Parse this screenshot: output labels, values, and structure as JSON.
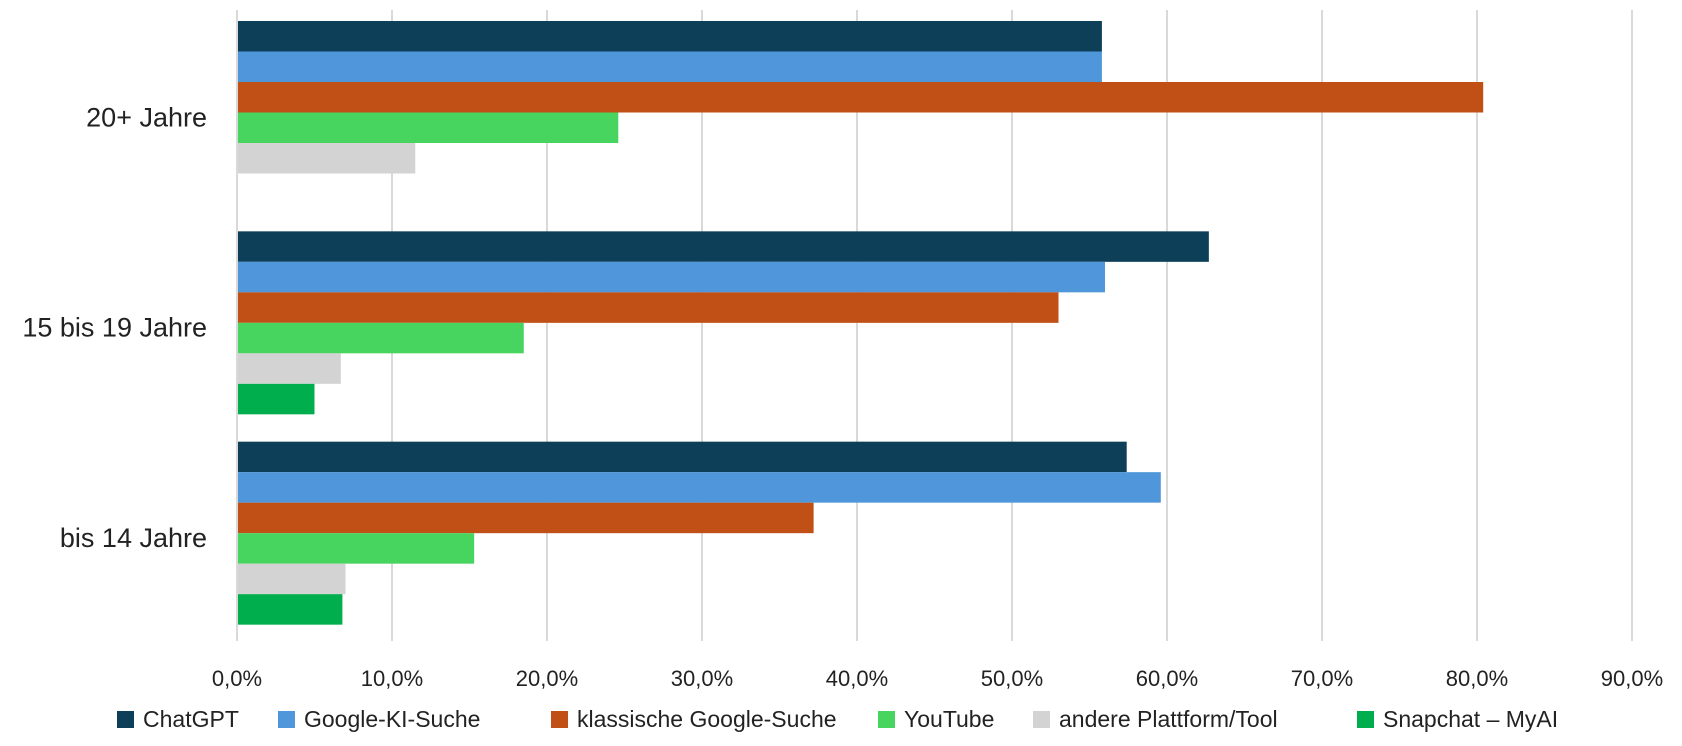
{
  "chart_data": {
    "type": "bar",
    "orientation": "horizontal",
    "categories": [
      "20+ Jahre",
      "15 bis 19 Jahre",
      "bis 14 Jahre"
    ],
    "series": [
      {
        "name": "ChatGPT",
        "color": "#0D4058",
        "values": [
          55.8,
          62.7,
          57.4
        ]
      },
      {
        "name": "Google-KI-Suche",
        "color": "#4F97DA",
        "values": [
          55.8,
          56.0,
          59.6
        ]
      },
      {
        "name": "klassische Google-Suche",
        "color": "#C05015",
        "values": [
          80.4,
          53.0,
          37.2
        ]
      },
      {
        "name": "YouTube",
        "color": "#47D45F",
        "values": [
          24.6,
          18.5,
          15.3
        ]
      },
      {
        "name": "andere Plattform/Tool",
        "color": "#D3D3D3",
        "values": [
          11.5,
          6.7,
          7.0
        ]
      },
      {
        "name": "Snapchat – MyAI",
        "color": "#00AE4D",
        "values": [
          0,
          5.0,
          6.8
        ]
      }
    ],
    "xlim": [
      0,
      90
    ],
    "x_ticks": [
      "0,0%",
      "10,0%",
      "20,0%",
      "30,0%",
      "40,0%",
      "50,0%",
      "60,0%",
      "70,0%",
      "80,0%",
      "90,0%"
    ],
    "grid": true,
    "legend": "bottom",
    "title": "",
    "xlabel": "",
    "ylabel": ""
  }
}
